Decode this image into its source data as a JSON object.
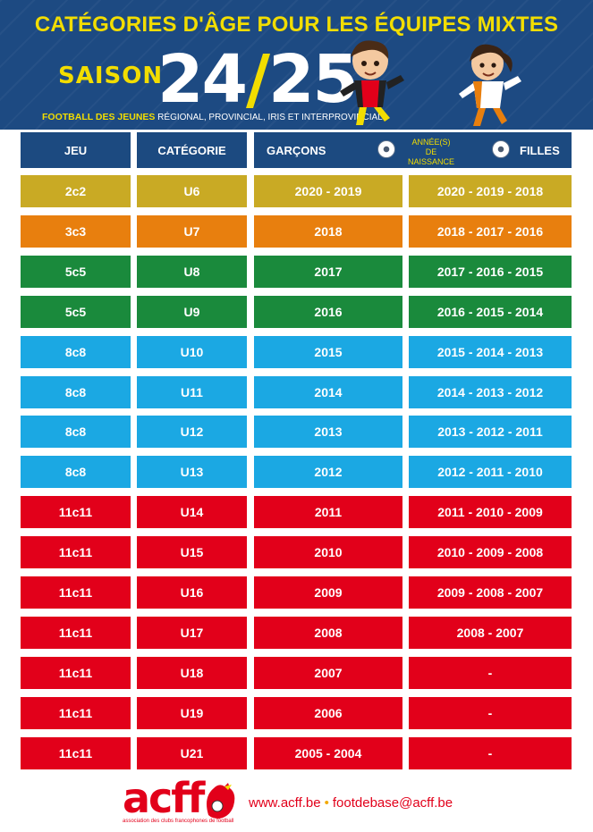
{
  "title": "CATÉGORIES D'ÂGE POUR LES ÉQUIPES MIXTES",
  "season_word": "SAISON",
  "season_a": "24",
  "season_slash": "/",
  "season_b": "25",
  "subtitle_bold": "FOOTBALL DES JEUNES",
  "subtitle_rest": " RÉGIONAL, PROVINCIAL, IRIS ET INTERPROVINCIAL",
  "headers": {
    "jeu": "JEU",
    "categorie": "CATÉGORIE",
    "garcons": "GARÇONS",
    "annees_line1": "ANNÉE(S) DE",
    "annees_line2": "NAISSANCE",
    "filles": "FILLES"
  },
  "colors": {
    "header_bg": "#1d4a82",
    "accent_yellow": "#f2dd00",
    "mustard": "#c9aa24",
    "orange": "#e87f0e",
    "green": "#1a8a3c",
    "lightblue": "#1ba8e3",
    "red": "#e2001a"
  },
  "rows": [
    {
      "jeu": "2c2",
      "cat": "U6",
      "garcons": "2020 - 2019",
      "filles": "2020 - 2019 - 2018",
      "color": "#c9aa24"
    },
    {
      "jeu": "3c3",
      "cat": "U7",
      "garcons": "2018",
      "filles": "2018 - 2017 - 2016",
      "color": "#e87f0e"
    },
    {
      "jeu": "5c5",
      "cat": "U8",
      "garcons": "2017",
      "filles": "2017 - 2016 - 2015",
      "color": "#1a8a3c"
    },
    {
      "jeu": "5c5",
      "cat": "U9",
      "garcons": "2016",
      "filles": "2016 - 2015 - 2014",
      "color": "#1a8a3c"
    },
    {
      "jeu": "8c8",
      "cat": "U10",
      "garcons": "2015",
      "filles": "2015 - 2014 - 2013",
      "color": "#1ba8e3"
    },
    {
      "jeu": "8c8",
      "cat": "U11",
      "garcons": "2014",
      "filles": "2014 - 2013 - 2012",
      "color": "#1ba8e3"
    },
    {
      "jeu": "8c8",
      "cat": "U12",
      "garcons": "2013",
      "filles": "2013 - 2012 - 2011",
      "color": "#1ba8e3"
    },
    {
      "jeu": "8c8",
      "cat": "U13",
      "garcons": "2012",
      "filles": "2012 - 2011 - 2010",
      "color": "#1ba8e3"
    },
    {
      "jeu": "11c11",
      "cat": "U14",
      "garcons": "2011",
      "filles": "2011 - 2010 - 2009",
      "color": "#e2001a"
    },
    {
      "jeu": "11c11",
      "cat": "U15",
      "garcons": "2010",
      "filles": "2010 - 2009 - 2008",
      "color": "#e2001a"
    },
    {
      "jeu": "11c11",
      "cat": "U16",
      "garcons": "2009",
      "filles": "2009 - 2008 - 2007",
      "color": "#e2001a"
    },
    {
      "jeu": "11c11",
      "cat": "U17",
      "garcons": "2008",
      "filles": "2008 - 2007",
      "color": "#e2001a"
    },
    {
      "jeu": "11c11",
      "cat": "U18",
      "garcons": "2007",
      "filles": "-",
      "color": "#e2001a"
    },
    {
      "jeu": "11c11",
      "cat": "U19",
      "garcons": "2006",
      "filles": "-",
      "color": "#e2001a"
    },
    {
      "jeu": "11c11",
      "cat": "U21",
      "garcons": "2005 - 2004",
      "filles": "-",
      "color": "#e2001a"
    }
  ],
  "footer": {
    "logo": "acff",
    "logo_sub": "association des clubs francophones de football",
    "website": "www.acff.be",
    "separator": "•",
    "email": "footdebase@acff.be"
  }
}
